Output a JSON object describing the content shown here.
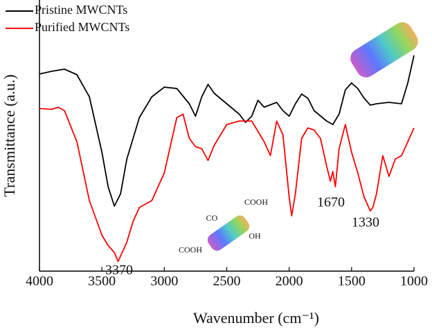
{
  "chart_data": {
    "type": "line",
    "x_label": "Wavenumber (cm⁻¹)",
    "y_label": "Transmittance (a.u.)",
    "xlim": [
      4000,
      1000
    ],
    "xticks": [
      4000,
      3500,
      3000,
      2500,
      2000,
      1500,
      1000
    ],
    "ylim": [
      0,
      392
    ],
    "legend": "upper left",
    "series": [
      {
        "name": "Pristine MWCNTs",
        "color": "#000000",
        "x": [
          4000,
          3900,
          3800,
          3700,
          3600,
          3500,
          3450,
          3400,
          3350,
          3300,
          3200,
          3100,
          3000,
          2900,
          2800,
          2750,
          2700,
          2650,
          2600,
          2500,
          2400,
          2350,
          2300,
          2250,
          2200,
          2100,
          2050,
          2000,
          1950,
          1900,
          1850,
          1800,
          1700,
          1650,
          1600,
          1550,
          1500,
          1450,
          1400,
          1350,
          1300,
          1200,
          1100,
          1050,
          1000
        ],
        "values": [
          285,
          289,
          292,
          284,
          252,
          172,
          122,
          94,
          112,
          162,
          222,
          252,
          266,
          264,
          242,
          224,
          252,
          270,
          257,
          242,
          227,
          215,
          224,
          247,
          237,
          244,
          232,
          224,
          242,
          256,
          250,
          232,
          217,
          212,
          227,
          262,
          272,
          264,
          250,
          240,
          242,
          244,
          242,
          272,
          312
        ]
      },
      {
        "name": "Purified MWCNTs",
        "color": "#ff0000",
        "x": [
          4000,
          3900,
          3850,
          3800,
          3700,
          3600,
          3500,
          3450,
          3400,
          3370,
          3300,
          3250,
          3200,
          3100,
          3000,
          2900,
          2850,
          2800,
          2750,
          2700,
          2650,
          2600,
          2500,
          2400,
          2300,
          2200,
          2150,
          2100,
          2050,
          2000,
          1980,
          1950,
          1900,
          1850,
          1800,
          1750,
          1700,
          1670,
          1650,
          1630,
          1600,
          1550,
          1500,
          1450,
          1400,
          1350,
          1330,
          1300,
          1250,
          1200,
          1150,
          1100,
          1000
        ],
        "values": [
          235,
          234,
          237,
          232,
          187,
          102,
          52,
          37,
          27,
          14,
          42,
          72,
          92,
          102,
          142,
          222,
          227,
          192,
          180,
          177,
          160,
          182,
          212,
          217,
          217,
          187,
          167,
          217,
          197,
          107,
          80,
          112,
          192,
          207,
          204,
          192,
          152,
          130,
          144,
          122,
          177,
          212,
          172,
          142,
          107,
          87,
          92,
          112,
          167,
          137,
          162,
          167,
          207
        ]
      }
    ],
    "annotations": [
      "3370",
      "1670",
      "1330"
    ],
    "inset_labels": [
      "COOH",
      "CO",
      "OH",
      "COOH"
    ]
  }
}
